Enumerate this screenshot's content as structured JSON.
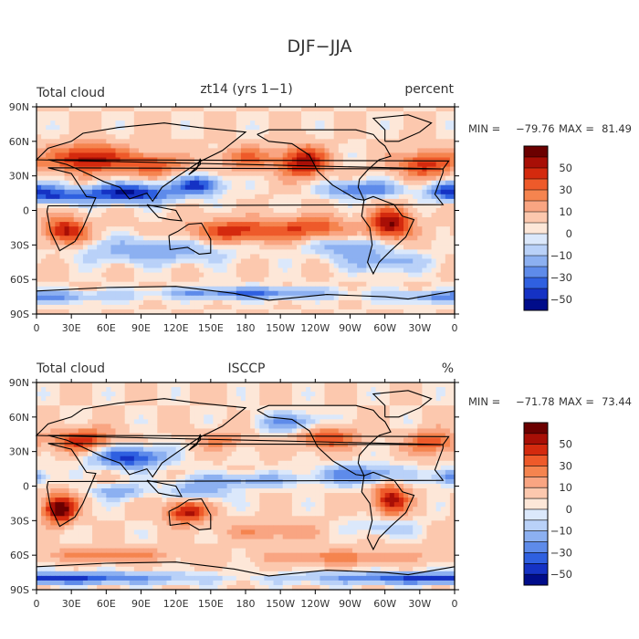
{
  "figure_title": "DJF−JJA",
  "chart_data": [
    {
      "type": "heatmap",
      "title": "zt14 (yrs 1−1)",
      "left_label": "Total cloud",
      "units": "percent",
      "stats": {
        "min_label": "MIN =",
        "min": "−79.76",
        "max_label": "MAX =",
        "max": "81.49"
      },
      "x_ticks": [
        "0",
        "30E",
        "60E",
        "90E",
        "120E",
        "150E",
        "180",
        "150W",
        "120W",
        "90W",
        "60W",
        "30W",
        "0"
      ],
      "y_ticks": [
        "90N",
        "60N",
        "30N",
        "0",
        "30S",
        "60S",
        "90S"
      ],
      "colorbar": {
        "labels": [
          "50",
          "30",
          "10",
          "0",
          "−10",
          "−30",
          "−50"
        ],
        "colors": [
          "#6b0000",
          "#a80f06",
          "#d42a0e",
          "#ee5a2a",
          "#f5844f",
          "#f9a582",
          "#fcc8ae",
          "#fde7d8",
          "#dbe8fb",
          "#b9d1f8",
          "#8cb0f1",
          "#5e8bea",
          "#2f60e0",
          "#1532c4",
          "#000c8a"
        ]
      }
    },
    {
      "type": "heatmap",
      "title": "ISCCP",
      "left_label": "Total cloud",
      "units": "%",
      "stats": {
        "min_label": "MIN =",
        "min": "−71.78",
        "max_label": "MAX =",
        "max": "73.44"
      },
      "x_ticks": [
        "0",
        "30E",
        "60E",
        "90E",
        "120E",
        "150E",
        "180",
        "150W",
        "120W",
        "90W",
        "60W",
        "30W",
        "0"
      ],
      "y_ticks": [
        "90N",
        "60N",
        "30N",
        "0",
        "30S",
        "60S",
        "90S"
      ],
      "colorbar": {
        "labels": [
          "50",
          "30",
          "10",
          "0",
          "−10",
          "−30",
          "−50"
        ],
        "colors": [
          "#6b0000",
          "#a80f06",
          "#d42a0e",
          "#ee5a2a",
          "#f5844f",
          "#f9a582",
          "#fcc8ae",
          "#fde7d8",
          "#dbe8fb",
          "#b9d1f8",
          "#8cb0f1",
          "#5e8bea",
          "#2f60e0",
          "#1532c4",
          "#000c8a"
        ]
      }
    }
  ]
}
